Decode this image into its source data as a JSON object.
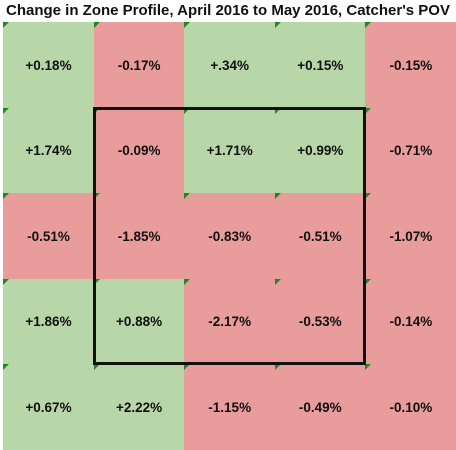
{
  "title": "Change in Zone Profile, April 2016 to May 2016, Catcher's POV",
  "colors": {
    "positive": "#b8d7a9",
    "negative": "#e89c9b",
    "marker": "#1e8a1e",
    "zone_border": "#111111"
  },
  "chart_data": {
    "type": "heatmap",
    "title": "Change in Zone Profile, April 2016 to May 2016, Catcher's POV",
    "rows": [
      [
        "+0.18%",
        "-0.17%",
        "+.34%",
        "+0.15%",
        "-0.15%"
      ],
      [
        "+1.74%",
        "-0.09%",
        "+1.71%",
        "+0.99%",
        "-0.71%"
      ],
      [
        "-0.51%",
        "-1.85%",
        "-0.83%",
        "-0.51%",
        "-1.07%"
      ],
      [
        "+1.86%",
        "+0.88%",
        "-2.17%",
        "-0.53%",
        "-0.14%"
      ],
      [
        "+0.67%",
        "+2.22%",
        "-1.15%",
        "-0.49%",
        "-0.10%"
      ]
    ],
    "strike_zone": {
      "rows": [
        1,
        3
      ],
      "cols": [
        1,
        3
      ]
    }
  }
}
